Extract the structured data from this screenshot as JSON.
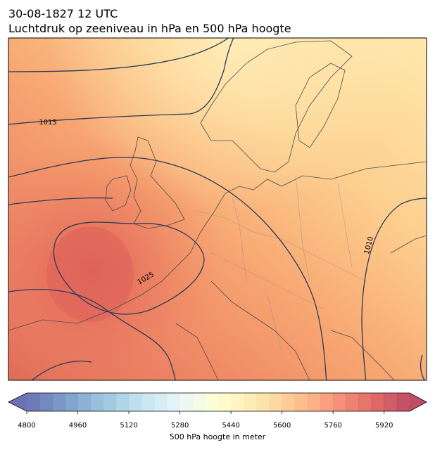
{
  "title": {
    "line1": "30-08-1827 12 UTC",
    "line2": "Luchtdruk op zeeniveau in hPa en 500 hPa hoogte"
  },
  "map": {
    "contour_labels": [
      "1015",
      "1025",
      "1010"
    ]
  },
  "colorbar": {
    "range": [
      4800,
      6000
    ],
    "level_step": 40,
    "ticks": [
      4800,
      4960,
      5120,
      5280,
      5440,
      5600,
      5760,
      5920
    ],
    "label": "500 hPa hoogte in meter",
    "colormap": [
      "#313695",
      "#4575b4",
      "#74add1",
      "#abd9e9",
      "#e0f3f8",
      "#ffffbf",
      "#fee090",
      "#fdae61",
      "#f46d43",
      "#d73027",
      "#a50026"
    ],
    "opacity": 0.7
  }
}
